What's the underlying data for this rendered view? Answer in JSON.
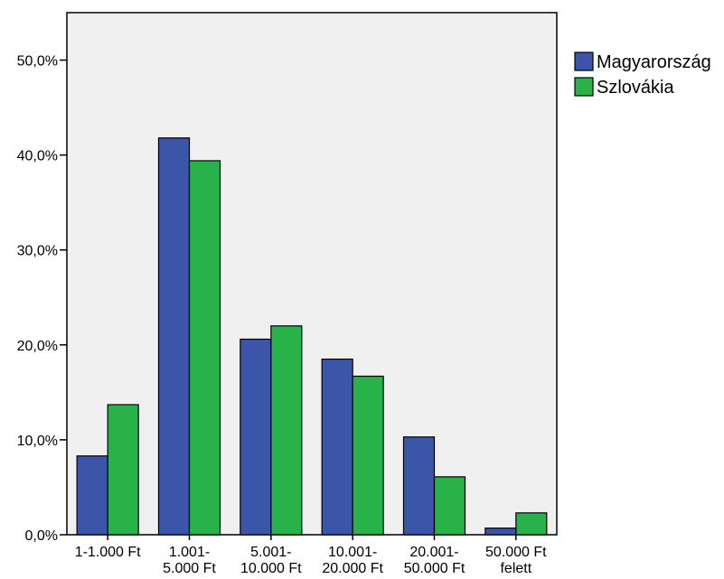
{
  "chart_data": {
    "type": "bar",
    "categories": [
      [
        "1-1.000 Ft"
      ],
      [
        "1.001-",
        "5.000 Ft"
      ],
      [
        "5.001-",
        "10.000 Ft"
      ],
      [
        "10.001-",
        "20.000 Ft"
      ],
      [
        "20.001-",
        "50.000 Ft"
      ],
      [
        "50.000 Ft",
        "felett"
      ]
    ],
    "series": [
      {
        "name": "Magyarország",
        "color": "#3b56a8",
        "values": [
          8.3,
          41.8,
          20.6,
          18.5,
          10.3,
          0.7
        ]
      },
      {
        "name": "Szlovákia",
        "color": "#2ab24a",
        "values": [
          13.7,
          39.4,
          22.0,
          16.7,
          6.1,
          2.3
        ]
      }
    ],
    "yticks": [
      "0,0%",
      "10,0%",
      "20,0%",
      "30,0%",
      "40,0%",
      "50,0%"
    ],
    "ylim": [
      0,
      55
    ],
    "plot_background": "#f0f0f0",
    "legend_position": "right",
    "grid": false,
    "title": "",
    "xlabel": "",
    "ylabel": ""
  }
}
